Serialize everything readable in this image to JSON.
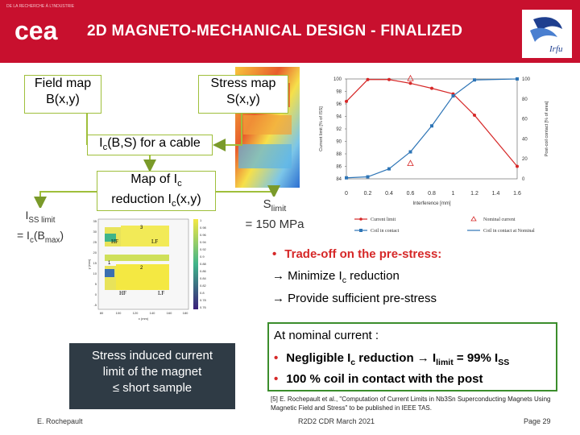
{
  "header": {
    "org_tiny": "DE LA RECHERCHE À L'INDUSTRIE",
    "logo_text": "cea",
    "title": "2D MAGNETO-MECHANICAL DESIGN - FINALIZED",
    "right_logo_text": "Irfu"
  },
  "flow": {
    "field_map_line1": "Field map",
    "field_map_line2": "B(x,y)",
    "stress_map_line1": "Stress map",
    "stress_map_line2": "S(x,y)",
    "ic_main": "I",
    "ic_sub": "c",
    "ic_rest": "(B,S) for a cable",
    "map_line1": "Map of I",
    "map_line1_sub": "c",
    "map_line2": "reduction I",
    "map_line2_sub": "c",
    "map_line2_rest": "(x,y)",
    "iss_main": "I",
    "iss_sub": "SS limit",
    "iss_line2_pre": "= I",
    "iss_line2_sub": "c",
    "iss_line2_rest": "(B",
    "iss_line2_sub2": "max",
    "iss_line2_end": ")",
    "slimit_main": "S",
    "slimit_sub": "limit",
    "slimit_line2": "= 150 MPa"
  },
  "icmap": {
    "labels": [
      "HF",
      "LF",
      "HF",
      "LF"
    ],
    "cable_numbers": [
      "3",
      "1",
      "2"
    ],
    "colorbar_ticks": [
      "1",
      "0.98",
      "0.96",
      "0.94",
      "0.92",
      "0.9",
      "0.88",
      "0.86",
      "0.84",
      "0.82",
      "0.8",
      "0.78",
      "0.76"
    ],
    "y_axis": "y (mm)",
    "x_axis": "x (mm)",
    "x_ticks": [
      "80",
      "100",
      "120",
      "140",
      "160",
      "180"
    ],
    "y_ticks": [
      "35",
      "30",
      "25",
      "20",
      "15",
      "10",
      "5",
      "0",
      "-5"
    ]
  },
  "chart_data": {
    "type": "line",
    "xlabel": "Interference [mm]",
    "ylabel_left": "Current limit [% of ISS]",
    "ylabel_right": "Post-coil contact [% of area]",
    "xlim": [
      0,
      1.6
    ],
    "ylim_left": [
      84,
      100
    ],
    "ylim_right": [
      0,
      100
    ],
    "x_ticks": [
      "0",
      "0.2",
      "0.4",
      "0.6",
      "0.8",
      "1",
      "1.2",
      "1.4",
      "1.6"
    ],
    "y_left_ticks": [
      "100",
      "98",
      "96",
      "94",
      "92",
      "90",
      "88",
      "86",
      "84"
    ],
    "y_right_ticks": [
      "100",
      "80",
      "60",
      "40",
      "20",
      "0"
    ],
    "series": [
      {
        "name": "Current limit",
        "axis": "left",
        "color": "#d62828",
        "x": [
          0,
          0.2,
          0.4,
          0.6,
          0.8,
          1.0,
          1.2,
          1.6
        ],
        "y": [
          96.4,
          99.9,
          99.9,
          99.3,
          98.5,
          97.6,
          94.2,
          86.0
        ]
      },
      {
        "name": "Coil in contact",
        "axis": "right",
        "color": "#2e75b6",
        "x": [
          0,
          0.2,
          0.4,
          0.6,
          0.8,
          1.0,
          1.2,
          1.6
        ],
        "y": [
          1,
          2,
          10,
          27,
          53,
          83,
          99,
          100
        ]
      }
    ],
    "nominal_points": [
      {
        "name": "Nominal current",
        "axis": "left",
        "x": 0.6,
        "y": 100.1,
        "color": "#d62828"
      },
      {
        "name": "Nominal current",
        "axis": "left",
        "x": 0.6,
        "y": 86.5,
        "color": "#d62828"
      }
    ],
    "legend": [
      {
        "label": "Current limit",
        "color": "#d62828",
        "marker": "line-dot"
      },
      {
        "label": "Nominal current",
        "color": "#d62828",
        "marker": "triangle"
      },
      {
        "label": "Coil in contact",
        "color": "#2e75b6",
        "marker": "line-square"
      },
      {
        "label": "Coil in contact at Nominal",
        "color": "#2e75b6",
        "marker": "line"
      }
    ]
  },
  "bullets": {
    "tradeoff": "Trade-off on the pre-stress:",
    "minimize_pre": "Minimize I",
    "minimize_sub": "c",
    "minimize_rest": " reduction",
    "provide": "Provide sufficient pre-stress"
  },
  "nominal_box": {
    "heading": "At nominal current :",
    "b1_pre": "Negligible I",
    "b1_sub": "c",
    "b1_mid": " reduction ",
    "b1_post": " I",
    "b1_sub2": "limit",
    "b1_end": " = 99% I",
    "b1_sub3": "SS",
    "b2": "100 % coil in contact with the post"
  },
  "stress_box": {
    "line1": "Stress induced current",
    "line2": "limit of the magnet",
    "line3": "≤ short sample"
  },
  "reference": "[5] E. Rochepault et al., \"Computation of Current Limits in Nb3Sn Superconducting Magnets Using Magnetic Field and Stress\" to be published in IEEE TAS.",
  "footer": {
    "author": "E. Rochepault",
    "event": "R2D2 CDR March 2021",
    "page": "Page 29"
  }
}
